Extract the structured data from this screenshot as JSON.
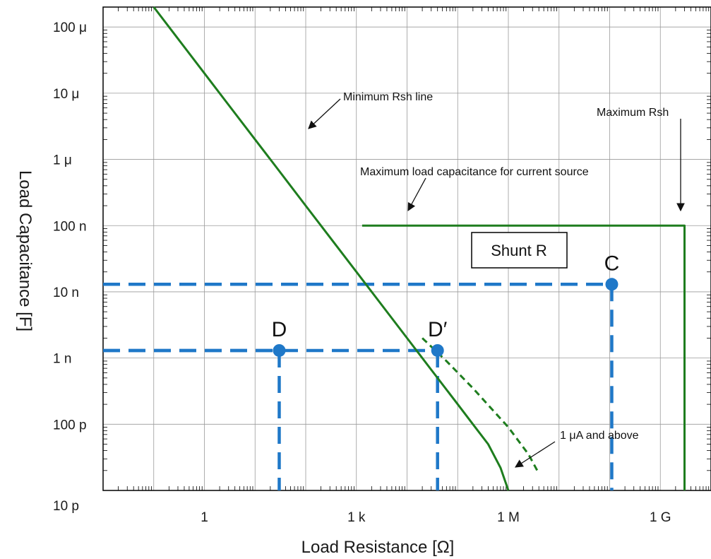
{
  "chart_data": {
    "type": "line",
    "title": "",
    "xlabel": "Load Resistance [Ω]",
    "ylabel": "Load Capacitance [F]",
    "x_scale": "log",
    "y_scale": "log",
    "xlim": [
      0.01,
      10000000000
    ],
    "ylim": [
      1e-11,
      0.0002
    ],
    "grid": true,
    "x_ticks": [
      {
        "value": 1,
        "label": "1"
      },
      {
        "value": 1000,
        "label": "1 k"
      },
      {
        "value": 1000000,
        "label": "1 M"
      },
      {
        "value": 1000000000,
        "label": "1 G"
      }
    ],
    "y_ticks": [
      {
        "value": 0.0001,
        "label": "100 μ"
      },
      {
        "value": 1e-05,
        "label": "10 μ"
      },
      {
        "value": 1e-06,
        "label": "1 μ"
      },
      {
        "value": 1e-07,
        "label": "100 n"
      },
      {
        "value": 1e-08,
        "label": "10 n"
      },
      {
        "value": 1e-09,
        "label": "1 n"
      },
      {
        "value": 1e-10,
        "label": "100 p"
      },
      {
        "value": 1e-11,
        "label": "10 p"
      }
    ],
    "colors": {
      "curve": "#1e7d1e",
      "guide": "#1f78c8",
      "grid": "#9a9a9a"
    },
    "series": [
      {
        "style": "solid",
        "x": [
          0.1,
          0.3,
          1,
          3,
          10,
          30,
          100,
          300,
          1000,
          3000,
          10000,
          30000,
          100000,
          200000,
          400000,
          700000,
          1000000
        ],
        "y": [
          0.0002,
          6.67e-05,
          2e-05,
          6.67e-06,
          2e-06,
          6.67e-07,
          2e-07,
          6.67e-08,
          2e-08,
          6.67e-09,
          2e-09,
          6.67e-10,
          2e-10,
          1e-10,
          5e-11,
          2.2e-11,
          1e-11
        ]
      },
      {
        "style": "solid",
        "x": [
          1300,
          3000000000,
          3000000000
        ],
        "y": [
          1e-07,
          1e-07,
          1e-11
        ]
      },
      {
        "style": "dashed",
        "x": [
          20000,
          60000,
          200000,
          1000000,
          2500000,
          4000000
        ],
        "y": [
          2e-09,
          9e-10,
          3.5e-10,
          9e-11,
          3.5e-11,
          1.8e-11
        ]
      }
    ],
    "points": [
      {
        "label": "D",
        "x": 30,
        "y": 1.3e-09
      },
      {
        "label": "D′",
        "x": 40000,
        "y": 1.3e-09
      },
      {
        "label": "C",
        "x": 110000000,
        "y": 1.3e-08
      }
    ],
    "annotations": [
      {
        "text": "Minimum Rsh line"
      },
      {
        "text": "Maximum Rsh"
      },
      {
        "text": "Maximum load capacitance for current source"
      },
      {
        "text": "Shunt R"
      },
      {
        "text": "1 μA and above"
      }
    ]
  }
}
